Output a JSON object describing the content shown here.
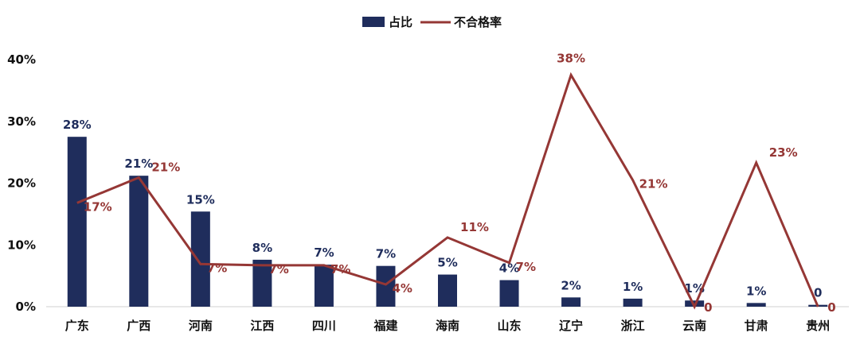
{
  "chart_data": {
    "type": "bar",
    "categories": [
      "广东",
      "广西",
      "河南",
      "江西",
      "四川",
      "福建",
      "海南",
      "山东",
      "辽宁",
      "浙江",
      "云南",
      "甘肃",
      "贵州"
    ],
    "series": [
      {
        "name": "占比",
        "type": "bar",
        "color": "#1f2d5c",
        "values": [
          27.5,
          21.2,
          15.4,
          7.6,
          6.8,
          6.6,
          5.2,
          4.3,
          1.5,
          1.3,
          1.0,
          0.6,
          0.3
        ],
        "labels": [
          "28%",
          "21%",
          "15%",
          "8%",
          "7%",
          "7%",
          "5%",
          "4%",
          "2%",
          "1%",
          "1%",
          "1%",
          "0"
        ]
      },
      {
        "name": "不合格率",
        "type": "line",
        "color": "#953735",
        "values": [
          16.8,
          20.9,
          6.9,
          6.7,
          6.7,
          3.6,
          11.2,
          7.1,
          37.5,
          20.5,
          0,
          23.3,
          0
        ],
        "labels": [
          "17%",
          "21%",
          "7%",
          "7%",
          "7%",
          "4%",
          "11%",
          "7%",
          "38%",
          "21%",
          "0",
          "23%",
          "0"
        ]
      }
    ],
    "ylim": [
      0,
      40
    ],
    "yticks": [
      0,
      10,
      20,
      30,
      40
    ],
    "ytick_labels": [
      "0%",
      "10%",
      "20%",
      "30%",
      "40%"
    ],
    "legend_position": "top-center",
    "grid": false
  }
}
